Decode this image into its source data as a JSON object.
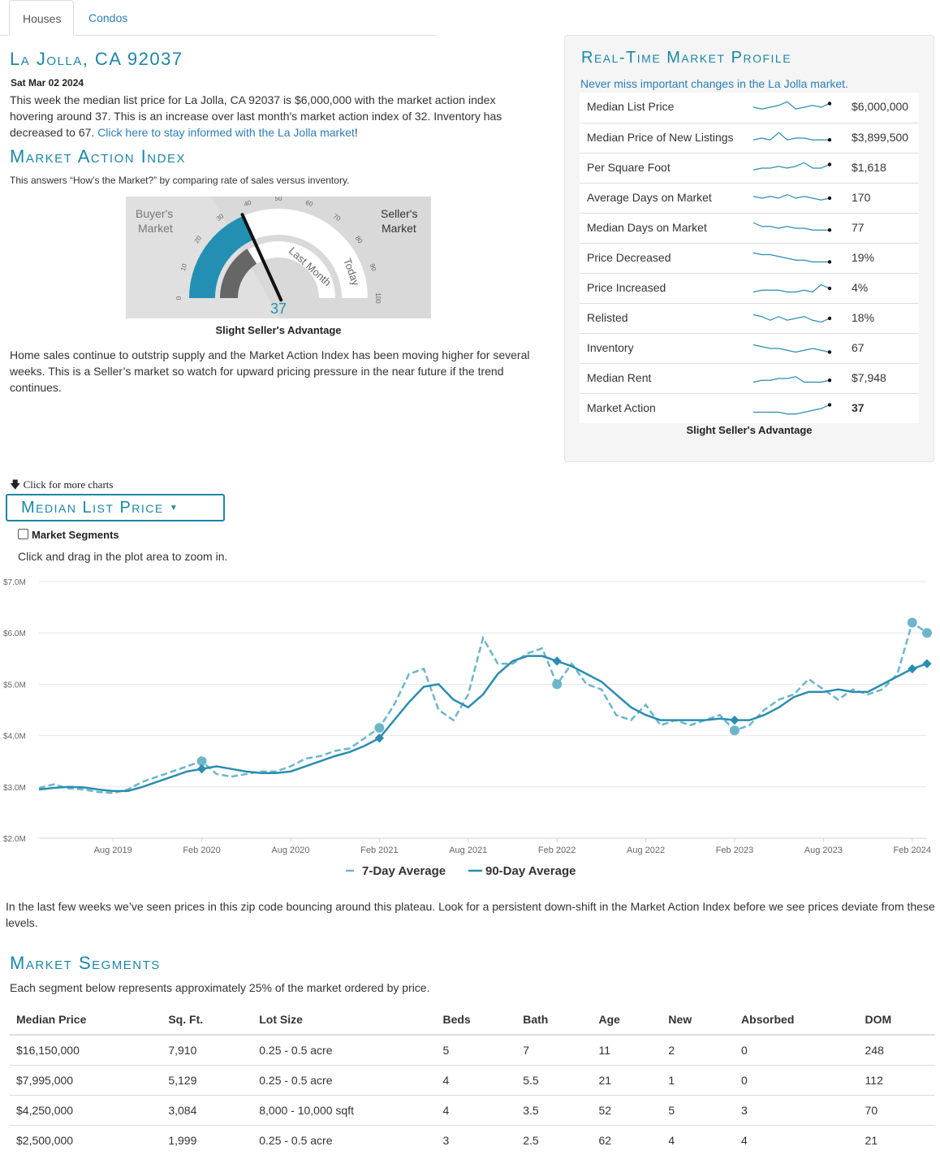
{
  "tabs": [
    "Houses",
    "Condos"
  ],
  "header": {
    "title": "La Jolla, CA 92037",
    "date": "Sat Mar 02 2024",
    "intro": "This week the median list price for La Jolla, CA 92037 is $6,000,000 with the market action index hovering around 37. This is an increase over last month's market action index of 32. Inventory has decreased to 67.",
    "intro_link": "Click here to stay informed with the La Jolla market",
    "intro_end": "!"
  },
  "mai": {
    "title": "Market Action Index",
    "subtitle": "This answers “How’s the Market?” by comparing rate of sales versus inventory.",
    "gauge": {
      "value": 37,
      "last_month": 32,
      "buyers_label_1": "Buyer's",
      "buyers_label_2": "Market",
      "sellers_label_1": "Seller's",
      "sellers_label_2": "Market",
      "last_month_label": "Last Month",
      "today_label": "Today",
      "ticks": [
        "0",
        "10",
        "20",
        "30",
        "40",
        "50",
        "60",
        "70",
        "80",
        "90",
        "100"
      ],
      "value_text": "37"
    },
    "verdict": "Slight Seller's Advantage",
    "commentary": "Home sales continue to outstrip supply and the Market Action Index has been moving higher for several weeks. This is a Seller’s market so watch for upward pricing pressure in the near future if the trend continues."
  },
  "profile": {
    "title": "Real-Time Market Profile",
    "subtitle": "Never miss important changes in the La Jolla market.",
    "rows": [
      {
        "label": "Median List Price",
        "value": "$6,000,000",
        "spark": [
          5,
          4,
          5,
          6,
          8,
          4,
          5,
          6,
          5,
          7
        ]
      },
      {
        "label": "Median Price of New Listings",
        "value": "$3,899,500",
        "spark": [
          4,
          5,
          4,
          8,
          4,
          5,
          5,
          4,
          4,
          4
        ]
      },
      {
        "label": "Per Square Foot",
        "value": "$1,618",
        "spark": [
          4,
          5,
          5,
          6,
          5,
          6,
          8,
          5,
          5,
          7
        ]
      },
      {
        "label": "Average Days on Market",
        "value": "170",
        "spark": [
          6,
          5,
          6,
          5,
          7,
          5,
          6,
          5,
          4,
          5
        ]
      },
      {
        "label": "Median Days on Market",
        "value": "77",
        "spark": [
          8,
          6,
          6,
          5,
          6,
          5,
          5,
          4,
          4,
          4
        ]
      },
      {
        "label": "Price Decreased",
        "value": "19%",
        "spark": [
          8,
          7,
          7,
          6,
          5,
          4,
          4,
          3,
          3,
          3
        ]
      },
      {
        "label": "Price Increased",
        "value": "4%",
        "spark": [
          3,
          4,
          4,
          4,
          3,
          3,
          4,
          3,
          7,
          5
        ]
      },
      {
        "label": "Relisted",
        "value": "18%",
        "spark": [
          7,
          6,
          4,
          6,
          4,
          5,
          6,
          4,
          3,
          5
        ]
      },
      {
        "label": "Inventory",
        "value": "67",
        "spark": [
          7,
          6,
          5,
          5,
          4,
          3,
          4,
          5,
          4,
          3
        ]
      },
      {
        "label": "Median Rent",
        "value": "$7,948",
        "spark": [
          3,
          4,
          4,
          5,
          5,
          6,
          3,
          3,
          3,
          4
        ]
      },
      {
        "label": "Market Action",
        "value": "37",
        "spark": [
          3,
          3,
          3,
          3,
          2,
          2,
          3,
          4,
          5,
          7
        ]
      }
    ],
    "footer": "Slight Seller's Advantage"
  },
  "controls": {
    "more_charts": "Click for more charts",
    "dropdown_label": "Median List Price",
    "segments_checkbox": "Market Segments",
    "zoom_hint": "Click and drag in the plot area to zoom in."
  },
  "chart_data": {
    "type": "line",
    "title": "",
    "xlabel": "",
    "ylabel": "",
    "y_ticks": [
      "$2.0M",
      "$3.0M",
      "$4.0M",
      "$5.0M",
      "$6.0M",
      "$7.0M"
    ],
    "ylim": [
      2.0,
      7.0
    ],
    "x_ticks": [
      "Aug 2019",
      "Feb 2020",
      "Aug 2020",
      "Feb 2021",
      "Aug 2021",
      "Feb 2022",
      "Aug 2022",
      "Feb 2023",
      "Aug 2023",
      "Feb 2024"
    ],
    "x": [
      "2019-03",
      "2019-04",
      "2019-05",
      "2019-06",
      "2019-07",
      "2019-08",
      "2019-09",
      "2019-10",
      "2019-11",
      "2019-12",
      "2020-01",
      "2020-02",
      "2020-03",
      "2020-04",
      "2020-05",
      "2020-06",
      "2020-07",
      "2020-08",
      "2020-09",
      "2020-10",
      "2020-11",
      "2020-12",
      "2021-01",
      "2021-02",
      "2021-03",
      "2021-04",
      "2021-05",
      "2021-06",
      "2021-07",
      "2021-08",
      "2021-09",
      "2021-10",
      "2021-11",
      "2021-12",
      "2022-01",
      "2022-02",
      "2022-03",
      "2022-04",
      "2022-05",
      "2022-06",
      "2022-07",
      "2022-08",
      "2022-09",
      "2022-10",
      "2022-11",
      "2022-12",
      "2023-01",
      "2023-02",
      "2023-03",
      "2023-04",
      "2023-05",
      "2023-06",
      "2023-07",
      "2023-08",
      "2023-09",
      "2023-10",
      "2023-11",
      "2023-12",
      "2024-01",
      "2024-02",
      "2024-03"
    ],
    "series": [
      {
        "name": "7-Day Average",
        "style": "dashed",
        "color": "#6cb6cc",
        "values": [
          2.98,
          3.05,
          2.97,
          2.95,
          2.9,
          2.88,
          2.95,
          3.1,
          3.2,
          3.3,
          3.4,
          3.5,
          3.25,
          3.2,
          3.25,
          3.3,
          3.3,
          3.4,
          3.55,
          3.6,
          3.7,
          3.75,
          3.95,
          4.15,
          4.6,
          5.2,
          5.3,
          4.5,
          4.3,
          4.8,
          5.9,
          5.4,
          5.4,
          5.6,
          5.7,
          5.0,
          5.4,
          5.0,
          4.9,
          4.4,
          4.3,
          4.6,
          4.2,
          4.3,
          4.2,
          4.3,
          4.4,
          4.1,
          4.2,
          4.5,
          4.7,
          4.8,
          5.1,
          4.9,
          4.7,
          4.9,
          4.8,
          4.9,
          5.2,
          6.2,
          6.0
        ]
      },
      {
        "name": "90-Day Average",
        "style": "solid",
        "color": "#2a8db0",
        "values": [
          2.95,
          2.98,
          3.0,
          2.99,
          2.95,
          2.92,
          2.92,
          3.0,
          3.1,
          3.2,
          3.3,
          3.35,
          3.4,
          3.35,
          3.3,
          3.27,
          3.27,
          3.3,
          3.4,
          3.5,
          3.6,
          3.68,
          3.8,
          3.95,
          4.3,
          4.65,
          4.95,
          5.0,
          4.7,
          4.55,
          4.8,
          5.2,
          5.45,
          5.55,
          5.55,
          5.45,
          5.35,
          5.2,
          5.05,
          4.8,
          4.55,
          4.4,
          4.3,
          4.3,
          4.3,
          4.3,
          4.33,
          4.3,
          4.3,
          4.4,
          4.55,
          4.75,
          4.85,
          4.85,
          4.9,
          4.85,
          4.85,
          5.0,
          5.15,
          5.3,
          5.4
        ]
      }
    ],
    "legend": [
      "7-Day Average",
      "90-Day Average"
    ],
    "legend_position": "bottom-center",
    "grid": true
  },
  "chart_note": "In the last few weeks we’ve seen prices in this zip code bouncing around this plateau. Look for a persistent down-shift in the Market Action Index before we see prices deviate from these levels.",
  "segments": {
    "title": "Market Segments",
    "subtitle": "Each segment below represents approximately 25% of the market ordered by price.",
    "columns": [
      "Median Price",
      "Sq. Ft.",
      "Lot Size",
      "Beds",
      "Bath",
      "Age",
      "New",
      "Absorbed",
      "DOM"
    ],
    "rows": [
      [
        "$16,150,000",
        "7,910",
        "0.25 - 0.5 acre",
        "5",
        "7",
        "11",
        "2",
        "0",
        "248"
      ],
      [
        "$7,995,000",
        "5,129",
        "0.25 - 0.5 acre",
        "4",
        "5.5",
        "21",
        "1",
        "0",
        "112"
      ],
      [
        "$4,250,000",
        "3,084",
        "8,000 - 10,000 sqft",
        "4",
        "3.5",
        "52",
        "5",
        "3",
        "70"
      ],
      [
        "$2,500,000",
        "1,999",
        "0.25 - 0.5 acre",
        "3",
        "2.5",
        "62",
        "4",
        "4",
        "21"
      ]
    ]
  }
}
